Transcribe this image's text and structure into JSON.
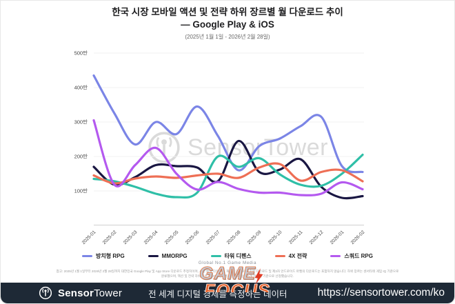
{
  "header": {
    "title": "한국 시장 모바일 액션 및 전략 하위 장르별 월 다운로드 추이",
    "subtitle": "— Google Play & iOS",
    "date_range": "(2025년 1월 1일 - 2026년 2월 28일)"
  },
  "chart_data": {
    "type": "line",
    "title": "한국 시장 모바일 액션 및 전략 하위 장르별 월 다운로드 추이 — Google Play & iOS",
    "unit": "만",
    "categories": [
      "2025-01",
      "2025-02",
      "2025-03",
      "2025-04",
      "2025-05",
      "2025-06",
      "2025-07",
      "2025-08",
      "2025-09",
      "2025-10",
      "2025-11",
      "2025-12",
      "2026-01",
      "2026-02"
    ],
    "series": [
      {
        "name": "방치형 RPG",
        "color": "#7b85e6",
        "values": [
          435,
          325,
          235,
          300,
          265,
          345,
          260,
          160,
          230,
          252,
          288,
          315,
          172,
          155
        ]
      },
      {
        "name": "MMORPG",
        "color": "#191642",
        "values": [
          170,
          118,
          140,
          175,
          172,
          168,
          128,
          245,
          155,
          162,
          192,
          112,
          80,
          85
        ]
      },
      {
        "name": "타워 디펜스",
        "color": "#2fbfa7",
        "values": [
          135,
          128,
          112,
          92,
          82,
          95,
          200,
          170,
          195,
          148,
          118,
          115,
          150,
          205
        ]
      },
      {
        "name": "4X 전략",
        "color": "#ee6f55",
        "values": [
          145,
          122,
          136,
          142,
          138,
          145,
          150,
          138,
          168,
          178,
          130,
          155,
          160,
          128
        ]
      },
      {
        "name": "스쿼드 RPG",
        "color": "#b459ef",
        "values": [
          305,
          118,
          175,
          225,
          150,
          104,
          126,
          106,
          95,
          95,
          88,
          92,
          125,
          105
        ]
      }
    ],
    "y_ticks": [
      {
        "label": "100만",
        "value": 100
      },
      {
        "label": "200만",
        "value": 200
      },
      {
        "label": "300만",
        "value": 300
      },
      {
        "label": "400만",
        "value": 400
      },
      {
        "label": "500만",
        "value": 500
      }
    ],
    "ylim": [
      100,
      500
    ],
    "grid": true,
    "legend_position": "bottom"
  },
  "watermark": {
    "text": "SensorTower"
  },
  "media_badge": {
    "tagline": "Global No.1 Game Media",
    "word1": "GAME",
    "word2": "FOCUS"
  },
  "footnote": {
    "line1": "참고: 2025년 1월 1일부터 2026년 2월 28일까지 대한민국 Google Play 및 App Store 다운로드 추정치이며, 사전 예약 다운로드, 재설치 다운로드, 중복 다운로드 및 제3자 안드로이드 마켓의 다운로드는 포함하지 않습니다. 하위 장르는 센서타워 게임 IQ 기준으로",
    "line2": "분류했으며, 액션 및 전략 하위 장르 중 2026년 2월 다운로드 상위 5개 장르를 기준으로 선정했습니다."
  },
  "footer": {
    "brand_bold": "Sensor",
    "brand_regular": "Tower",
    "tagline": "전 세계 디지털 경제를 측정하는 데이터",
    "url": "https://sensortower.com/ko"
  }
}
